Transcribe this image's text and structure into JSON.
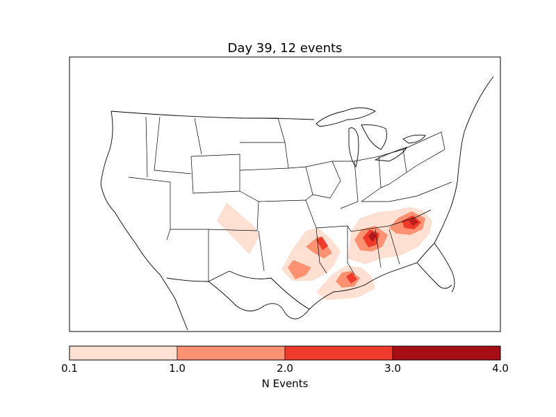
{
  "figure": {
    "title": "Day 39, 12 events"
  },
  "colorbar": {
    "label": "N Events",
    "ticks": [
      "0.1",
      "1.0",
      "2.0",
      "3.0",
      "4.0"
    ],
    "bins": [
      {
        "from": 0.1,
        "to": 1.0,
        "color": "#fee0d2"
      },
      {
        "from": 1.0,
        "to": 2.0,
        "color": "#fc9272"
      },
      {
        "from": 2.0,
        "to": 3.0,
        "color": "#ef3b2c"
      },
      {
        "from": 3.0,
        "to": 4.0,
        "color": "#a50f15"
      }
    ]
  },
  "map": {
    "region": "Contiguous United States",
    "boundaries": "coastlines, country and state borders"
  }
}
